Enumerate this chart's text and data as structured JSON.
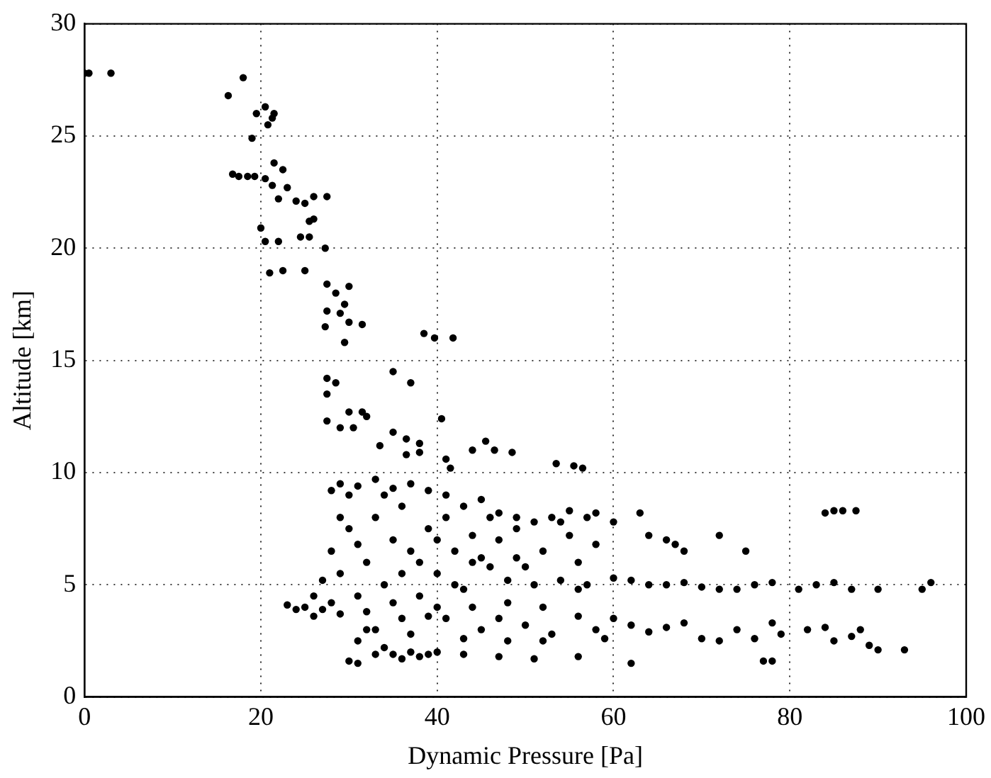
{
  "chart_data": {
    "type": "scatter",
    "xlabel": "Dynamic Pressure [Pa]",
    "ylabel": "Altitude [km]",
    "xlim": [
      0,
      100
    ],
    "xticks": [
      0,
      20,
      40,
      60,
      80,
      100
    ],
    "ylim": [
      0,
      30
    ],
    "yticks": [
      0,
      5,
      10,
      15,
      20,
      25,
      30
    ],
    "grid": true,
    "marker": "circle",
    "color": "#000000",
    "x": [
      0,
      0.5,
      3,
      18,
      16.3,
      20.5,
      19.5,
      21.5,
      21.3,
      20.8,
      19,
      16.8,
      17.5,
      18.5,
      19.3,
      20.5,
      21.5,
      22.5,
      21.3,
      23,
      22,
      24,
      25,
      26,
      27.5,
      26,
      25.5,
      20,
      20.5,
      22,
      24.5,
      25.5,
      27.3,
      21,
      22.5,
      25,
      27.5,
      28.5,
      30,
      29.5,
      27.5,
      29,
      31.5,
      27.3,
      30,
      29.5,
      27.5,
      28.5,
      27.5,
      30,
      31.5,
      27.5,
      29,
      30.5,
      35,
      36.5,
      38,
      32,
      35,
      37,
      40.5,
      41,
      38.5,
      39.7,
      41.8,
      33.5,
      36.5,
      38,
      41.5,
      44,
      45.5,
      46.5,
      48.5,
      53.5,
      55.5,
      56.5,
      28,
      29,
      30,
      31,
      33,
      35,
      37,
      39,
      41,
      43,
      45,
      47,
      49,
      51,
      53,
      55,
      57,
      58,
      60,
      63,
      64,
      66,
      67,
      68,
      72,
      75,
      84,
      85,
      86,
      87.5,
      60,
      62,
      64,
      66,
      68,
      70,
      72,
      74,
      76,
      78,
      81,
      83,
      85,
      87,
      90,
      95,
      96,
      60,
      62,
      64,
      66,
      68,
      70,
      72,
      74,
      76,
      78,
      79,
      82,
      84,
      85,
      87,
      88,
      89,
      90,
      93,
      77,
      78,
      62,
      56,
      51,
      47,
      43,
      23,
      24,
      25,
      26,
      27,
      28,
      29,
      30,
      31,
      31,
      32,
      33,
      34,
      35,
      36,
      37,
      38,
      39,
      40,
      28,
      29,
      30,
      31,
      32,
      33,
      34,
      35,
      36,
      37,
      38,
      39,
      40,
      41,
      42,
      43,
      44,
      45,
      46,
      47,
      48,
      49,
      50,
      51,
      52,
      53,
      54,
      55,
      56,
      57,
      58,
      59,
      33,
      35,
      37,
      39,
      41,
      43,
      45,
      47,
      49,
      31,
      29,
      27,
      26,
      34,
      36,
      38,
      40,
      42,
      44,
      46,
      48,
      50,
      52,
      54,
      56,
      58,
      32,
      36,
      40,
      44,
      48,
      52,
      56
    ],
    "values": [
      27.8,
      27.8,
      27.8,
      27.6,
      26.8,
      26.3,
      26,
      26,
      25.8,
      25.5,
      24.9,
      23.3,
      23.2,
      23.2,
      23.2,
      23.1,
      23.8,
      23.5,
      22.8,
      22.7,
      22.2,
      22.1,
      22,
      22.3,
      22.3,
      21.3,
      21.2,
      20.9,
      20.3,
      20.3,
      20.5,
      20.5,
      20,
      18.9,
      19,
      19,
      18.4,
      18,
      18.3,
      17.5,
      17.2,
      17.1,
      16.6,
      16.5,
      16.7,
      15.8,
      14.2,
      14,
      13.5,
      12.7,
      12.7,
      12.3,
      12,
      12,
      11.8,
      11.5,
      11.3,
      12.5,
      14.5,
      14,
      12.4,
      10.6,
      16.2,
      16,
      16,
      11.2,
      10.8,
      10.9,
      10.2,
      11,
      11.4,
      11,
      10.9,
      10.4,
      10.3,
      10.2,
      9.2,
      9.5,
      9,
      9.4,
      9.7,
      9.3,
      9.5,
      9.2,
      9,
      8.5,
      8.8,
      8.2,
      8,
      7.8,
      8,
      8.3,
      8,
      8.2,
      7.8,
      8.2,
      7.2,
      7,
      6.8,
      6.5,
      7.2,
      6.5,
      8.2,
      8.3,
      8.3,
      8.3,
      5.3,
      5.2,
      5,
      5,
      5.1,
      4.9,
      4.8,
      4.8,
      5,
      5.1,
      4.8,
      5,
      5.1,
      4.8,
      4.8,
      4.8,
      5.1,
      3.5,
      3.2,
      2.9,
      3.1,
      3.3,
      2.6,
      2.5,
      3,
      2.6,
      3.3,
      2.8,
      3,
      3.1,
      2.5,
      2.7,
      3,
      2.3,
      2.1,
      2.1,
      1.6,
      1.6,
      1.5,
      1.8,
      1.7,
      1.8,
      1.9,
      4.1,
      3.9,
      4,
      3.6,
      3.9,
      4.2,
      3.7,
      1.6,
      1.5,
      2.5,
      3,
      1.9,
      2.2,
      1.9,
      1.7,
      2,
      1.8,
      1.9,
      2,
      6.5,
      5.5,
      7.5,
      4.5,
      6,
      8,
      5,
      7,
      3.5,
      6.5,
      4.5,
      7.5,
      5.5,
      3.5,
      6.5,
      4.8,
      7.2,
      3,
      5.8,
      7,
      4.2,
      6.2,
      3.2,
      5,
      6.5,
      2.8,
      5.2,
      7.2,
      3.6,
      5,
      6.8,
      2.6,
      3,
      4.2,
      2.8,
      3.6,
      8,
      2.6,
      6.2,
      3.5,
      7.5,
      6.8,
      8,
      5.2,
      4.5,
      9,
      8.5,
      6,
      7,
      5,
      4,
      8,
      2.5,
      5.8,
      4,
      7.8,
      4.8,
      3,
      3.8,
      5.5,
      4,
      6,
      5.2,
      2.5,
      6
    ]
  }
}
